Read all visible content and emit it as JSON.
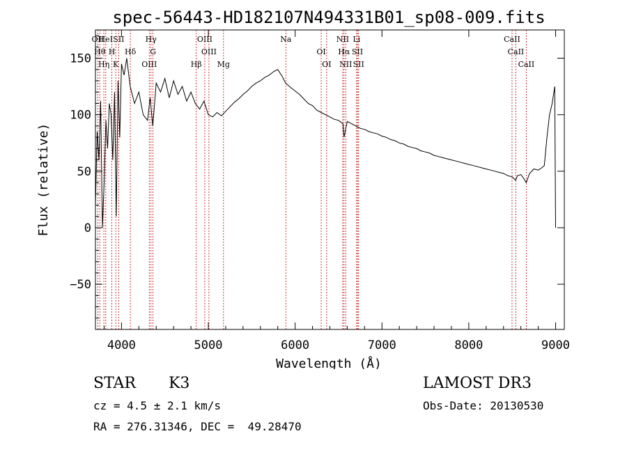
{
  "chart_data": {
    "type": "line",
    "title": "spec-56443-HD182107N494331B01_sp08-009.fits",
    "xlabel": "Wavelength (Å)",
    "ylabel": "Flux (relative)",
    "xlim": [
      3700,
      9100
    ],
    "ylim": [
      -90,
      175
    ],
    "xticks": [
      4000,
      5000,
      6000,
      7000,
      8000,
      9000
    ],
    "yticks": [
      -50,
      0,
      50,
      100,
      150
    ],
    "line_color": "#000000",
    "marker_color": "#c00000",
    "series": [
      {
        "x": [
          3700,
          3720,
          3740,
          3760,
          3780,
          3800,
          3820,
          3840,
          3860,
          3880,
          3900,
          3920,
          3940,
          3960,
          3980,
          4000,
          4030,
          4060,
          4100,
          4150,
          4200,
          4250,
          4300,
          4330,
          4360,
          4400,
          4450,
          4500,
          4550,
          4600,
          4650,
          4700,
          4750,
          4800,
          4850,
          4900,
          4950,
          5000,
          5050,
          5100,
          5150,
          5200,
          5250,
          5300,
          5350,
          5400,
          5450,
          5500,
          5550,
          5600,
          5650,
          5700,
          5750,
          5800,
          5850,
          5890,
          5950,
          6000,
          6050,
          6100,
          6150,
          6200,
          6250,
          6300,
          6350,
          6400,
          6450,
          6500,
          6550,
          6563,
          6600,
          6650,
          6700,
          6750,
          6800,
          6850,
          6900,
          6950,
          7000,
          7050,
          7100,
          7150,
          7200,
          7250,
          7300,
          7350,
          7400,
          7450,
          7500,
          7550,
          7600,
          7650,
          7700,
          7750,
          7800,
          7850,
          7900,
          7950,
          8000,
          8050,
          8100,
          8150,
          8200,
          8250,
          8300,
          8350,
          8400,
          8450,
          8500,
          8540,
          8560,
          8600,
          8630,
          8662,
          8700,
          8750,
          8800,
          8840,
          8870,
          8900,
          8930,
          8960,
          8990,
          9000
        ],
        "y": [
          20,
          85,
          60,
          112,
          0,
          40,
          95,
          70,
          110,
          100,
          60,
          120,
          10,
          130,
          80,
          145,
          135,
          150,
          125,
          110,
          120,
          100,
          95,
          115,
          90,
          128,
          120,
          132,
          115,
          130,
          118,
          125,
          112,
          120,
          110,
          105,
          112,
          100,
          98,
          102,
          99,
          103,
          107,
          111,
          114,
          118,
          121,
          125,
          128,
          130,
          133,
          135,
          138,
          140,
          134,
          128,
          124,
          121,
          118,
          114,
          110,
          108,
          104,
          102,
          100,
          98,
          96,
          95,
          92,
          80,
          94,
          92,
          90,
          88,
          87,
          85,
          84,
          83,
          81,
          80,
          78,
          77,
          75,
          74,
          72,
          71,
          70,
          68,
          67,
          66,
          64,
          63,
          62,
          61,
          60,
          59,
          58,
          57,
          56,
          55,
          54,
          53,
          52,
          51,
          50,
          49,
          48,
          46,
          45,
          42,
          46,
          47,
          44,
          40,
          48,
          52,
          51,
          53,
          55,
          80,
          100,
          110,
          125,
          0
        ]
      }
    ],
    "line_markers": [
      {
        "x": 3727,
        "label": "OII"
      },
      {
        "x": 3750,
        "label": "Hθ"
      },
      {
        "x": 3797,
        "label": "Hη"
      },
      {
        "x": 3819,
        "label": "HeI"
      },
      {
        "x": 3889,
        "label": "H"
      },
      {
        "x": 3934,
        "label": "K"
      },
      {
        "x": 3968,
        "label": "SII"
      },
      {
        "x": 4102,
        "label": "Hδ"
      },
      {
        "x": 4320,
        "label": "OIII"
      },
      {
        "x": 4340,
        "label": "Hγ"
      },
      {
        "x": 4363,
        "label": "G"
      },
      {
        "x": 4861,
        "label": "Hβ"
      },
      {
        "x": 4959,
        "label": "OIII"
      },
      {
        "x": 5007,
        "label": "OIII"
      },
      {
        "x": 5175,
        "label": "Mg"
      },
      {
        "x": 5893,
        "label": "Na"
      },
      {
        "x": 6300,
        "label": "OI"
      },
      {
        "x": 6363,
        "label": "OI"
      },
      {
        "x": 6548,
        "label": "NII"
      },
      {
        "x": 6563,
        "label": "Hα"
      },
      {
        "x": 6583,
        "label": "NII"
      },
      {
        "x": 6708,
        "label": "Li"
      },
      {
        "x": 6717,
        "label": "SII"
      },
      {
        "x": 6731,
        "label": "SII"
      },
      {
        "x": 8498,
        "label": "CaII"
      },
      {
        "x": 8542,
        "label": "CaII"
      },
      {
        "x": 8662,
        "label": "CaII"
      }
    ]
  },
  "footer": {
    "object_type": "STAR",
    "subclass": "K3",
    "survey": "LAMOST DR3",
    "cz": "cz = 4.5 ± 2.1 km/s",
    "obs_date": "Obs-Date: 20130530",
    "coords": "RA = 276.31346, DEC =  49.28470"
  }
}
